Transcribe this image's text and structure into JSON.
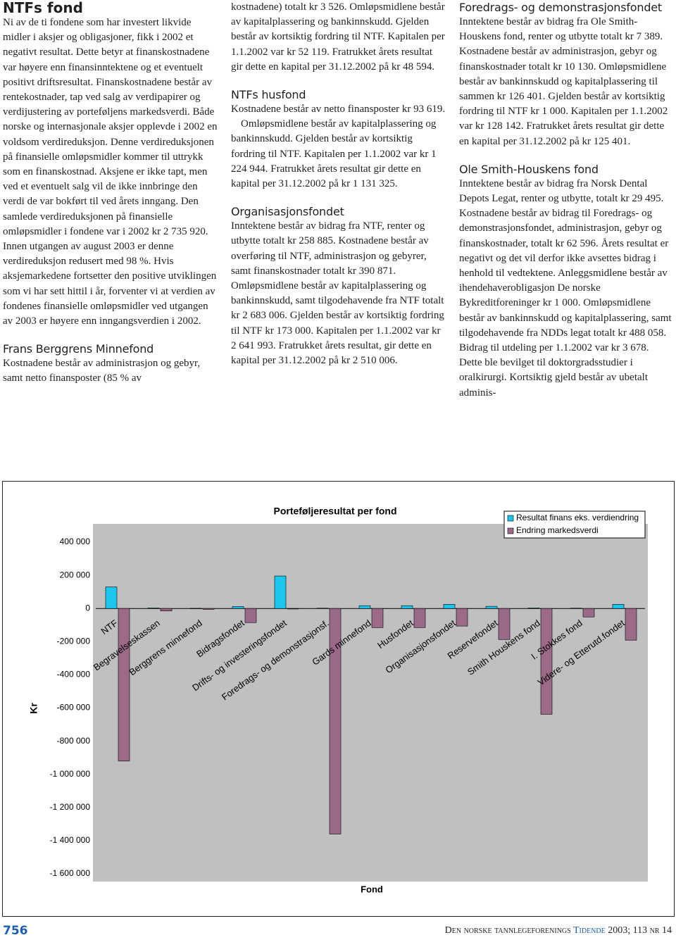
{
  "document": {
    "sections": [
      {
        "heading": "NTFs fond",
        "paragraphs": [
          "Ni av de ti fondene som har investert likvide midler i aksjer og obligasjoner, fikk i 2002 et negativt resultat. Dette betyr at finanskostnadene var høyere enn finansinntektene og et eventuelt positivt driftsresultat. Finanskostnadene består av rentekostnader, tap ved salg av verdipapirer og verdijustering av porteføljens markedsverdi. Både norske og internasjonale aksjer opplevde i 2002 en voldsom verdireduksjon. Denne verdireduksjonen på finansielle omløpsmidler kommer til uttrykk som en finanskostnad. Aksjene er ikke tapt, men ved et eventuelt salg vil de ikke innbringe den verdi de var bokført til ved årets inngang. Den samlede verdireduksjonen på finansielle omløpsmidler i fondene var i 2002 kr 2 735 920. Innen utgangen av august 2003 er denne verdireduksjon redusert med 98 %. Hvis aksjemarkedene fortsetter den positive utviklingen som vi har sett hittil i år, forventer vi at verdien av fondenes finansielle omløpsmidler ved utgangen av 2003 er høyere enn inngangsverdien i 2002."
        ]
      },
      {
        "heading": "Frans Berggrens Minnefond",
        "paragraphs": [
          "Kostnadene består av administrasjon og gebyr, samt netto finansposter (85 % av",
          "kostnadene) totalt kr 3 526. Omløpsmidlene består av kapitalplassering og bankinnskudd. Gjelden består av kortsiktig fordring til NTF. Kapitalen per 1.1.2002 var kr 52 119. Fratrukket årets resultat gir dette en kapital per 31.12.2002 på kr 48 594."
        ]
      },
      {
        "heading": "NTFs husfond",
        "paragraphs": [
          "Kostnadene består av netto finansposter kr 93 619.",
          "Omløpsmidlene består av kapitalplassering og bankinnskudd. Gjelden består av kortsiktig fordring til NTF. Kapitalen per 1.1.2002 var kr 1 224 944. Fratrukket årets resultat gir dette en kapital per 31.12.2002 på kr 1 131 325."
        ]
      },
      {
        "heading": "Organisasjonsfondet",
        "paragraphs": [
          "Inntektene består av bidrag fra NTF, renter og utbytte totalt kr 258 885. Kostnadene består av overføring til NTF, administrasjon og gebyrer, samt finanskostnader totalt kr 390 871. Omløpsmidlene består av kapitalplassering og bankinnskudd, samt tilgodehavende fra NTF totalt kr 2 683 006. Gjelden består av kortsiktig fordring til NTF kr 173 000. Kapitalen per 1.1.2002 var kr 2 641 993. Fratrukket årets resultat, gir dette en kapital per 31.12.2002 på kr 2 510 006."
        ]
      },
      {
        "heading": "Foredrags- og demonstrasjonsfondet",
        "paragraphs": [
          "Inntektene består av bidrag fra Ole Smith-Houskens fond, renter og utbytte totalt kr 7 389. Kostnadene består av administrasjon, gebyr og finanskostnader totalt kr 10 130. Omløpsmidlene består av bankinnskudd og kapitalplassering til sammen kr 126 401. Gjelden består av kortsiktig fordring til NTF kr 1 000. Kapitalen per 1.1.2002 var kr 128 142. Fratrukket årets resultat gir dette en kapital per 31.12.2002 på kr 125 401."
        ]
      },
      {
        "heading": "Ole Smith-Houskens fond",
        "paragraphs": [
          "Inntektene består av bidrag fra Norsk Dental Depots Legat, renter og utbytte, totalt kr 29 495. Kostnadene består av bidrag til Foredrags- og demonstrasjonsfondet, administrasjon, gebyr og finanskostnader, totalt kr 62 596. Årets resultat er negativt og det vil derfor ikke avsettes bidrag i henhold til vedtektene. Anleggsmidlene består av ihendehaverobligasjon De norske Bykreditforeninger kr 1 000. Omløpsmidlene består av bankinnskudd og kapitalplassering, samt tilgodehavende fra NDDs legat totalt kr 488 058. Bidrag til utdeling per 1.1.2002 var kr 3 678. Dette ble bevilget til doktorgradsstudier i oralkirurgi. Kortsiktig gjeld består av ubetalt adminis-"
        ]
      }
    ],
    "footer": {
      "page": "756",
      "journal": "Den norske tannlegeforenings",
      "journal_emphasis": "Tidende",
      "issue": "2003; 113 nr 14"
    }
  },
  "chart_data": {
    "type": "bar",
    "title": "Porteføljeresultat per fond",
    "x_label": "Fond",
    "y_label": "Kr",
    "categories": [
      "NTF",
      "Begravelseskassen",
      "Berggrens minnefond",
      "Bidragsfondet",
      "Drifts- og investeringsfondet",
      "Foredrags- og demonstrasjonsf.",
      "Gards minnefond",
      "Husfondet",
      "Organisasjonsfondet",
      "Reservefondet",
      "Smith Houskens fond",
      "I. Stokkes fond",
      "Videre- og Etterutd.fondet"
    ],
    "series": [
      {
        "name": "Resultat finans eks. verdiendring",
        "color": "#1ec6ee",
        "values": [
          130000,
          3000,
          1000,
          12000,
          196000,
          2000,
          17000,
          17000,
          25000,
          13000,
          3000,
          2000,
          25000
        ]
      },
      {
        "name": "Endring markedsverdi",
        "color": "#9a6a88",
        "values": [
          -920000,
          -15000,
          -5000,
          -85000,
          -3000,
          -1360000,
          -115000,
          -115000,
          -106000,
          -187000,
          -638000,
          -51000,
          -191000
        ]
      }
    ],
    "ylim": [
      -1600000,
      400000
    ],
    "yticks": [
      {
        "value": 400000,
        "label": "400 000"
      },
      {
        "value": 200000,
        "label": "200 000"
      },
      0,
      {
        "value": -200000,
        "label": "-200 000"
      },
      {
        "value": -400000,
        "label": "-400 000"
      },
      {
        "value": -600000,
        "label": "-600 000"
      },
      {
        "value": -800000,
        "label": "-800 000"
      },
      {
        "value": -1000000,
        "label": "-1 000 000"
      },
      {
        "value": -1200000,
        "label": "-1 200 000"
      },
      {
        "value": -1400000,
        "label": "-1 400 000"
      },
      {
        "value": -1600000,
        "label": "-1 600 000"
      }
    ],
    "grid": false,
    "legend": "upper right"
  }
}
